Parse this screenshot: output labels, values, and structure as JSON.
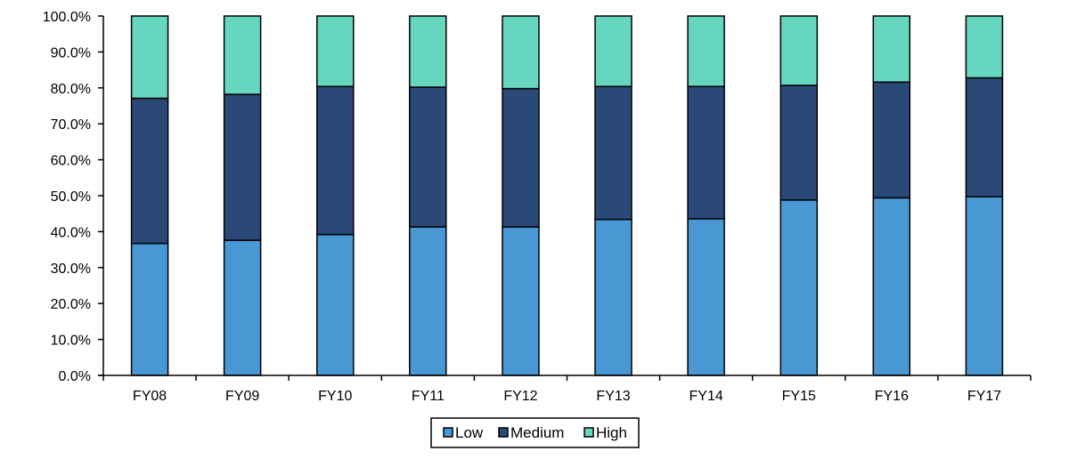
{
  "chart_data": {
    "type": "bar",
    "stacked": true,
    "title": "",
    "xlabel": "",
    "ylabel": "",
    "ylim": [
      0,
      100
    ],
    "ytick_step": 10,
    "ytick_labels": [
      "0.0%",
      "10.0%",
      "20.0%",
      "30.0%",
      "40.0%",
      "50.0%",
      "60.0%",
      "70.0%",
      "80.0%",
      "90.0%",
      "100.0%"
    ],
    "categories": [
      "FY08",
      "FY09",
      "FY10",
      "FY11",
      "FY12",
      "FY13",
      "FY14",
      "FY15",
      "FY16",
      "FY17"
    ],
    "series": [
      {
        "name": "Low",
        "color": "#4A98D3",
        "values": [
          36.7,
          37.6,
          39.2,
          41.3,
          41.3,
          43.4,
          43.6,
          48.8,
          49.4,
          49.7
        ]
      },
      {
        "name": "Medium",
        "color": "#2B4978",
        "values": [
          40.4,
          40.6,
          41.2,
          38.9,
          38.5,
          37.0,
          36.8,
          31.9,
          32.2,
          33.1
        ]
      },
      {
        "name": "High",
        "color": "#66D6BF",
        "values": [
          22.9,
          21.8,
          19.6,
          19.8,
          20.2,
          19.6,
          19.6,
          19.3,
          18.4,
          17.2
        ]
      }
    ],
    "grid": false,
    "legend": {
      "position": "bottom",
      "entries": [
        "Low",
        "Medium",
        "High"
      ]
    }
  }
}
